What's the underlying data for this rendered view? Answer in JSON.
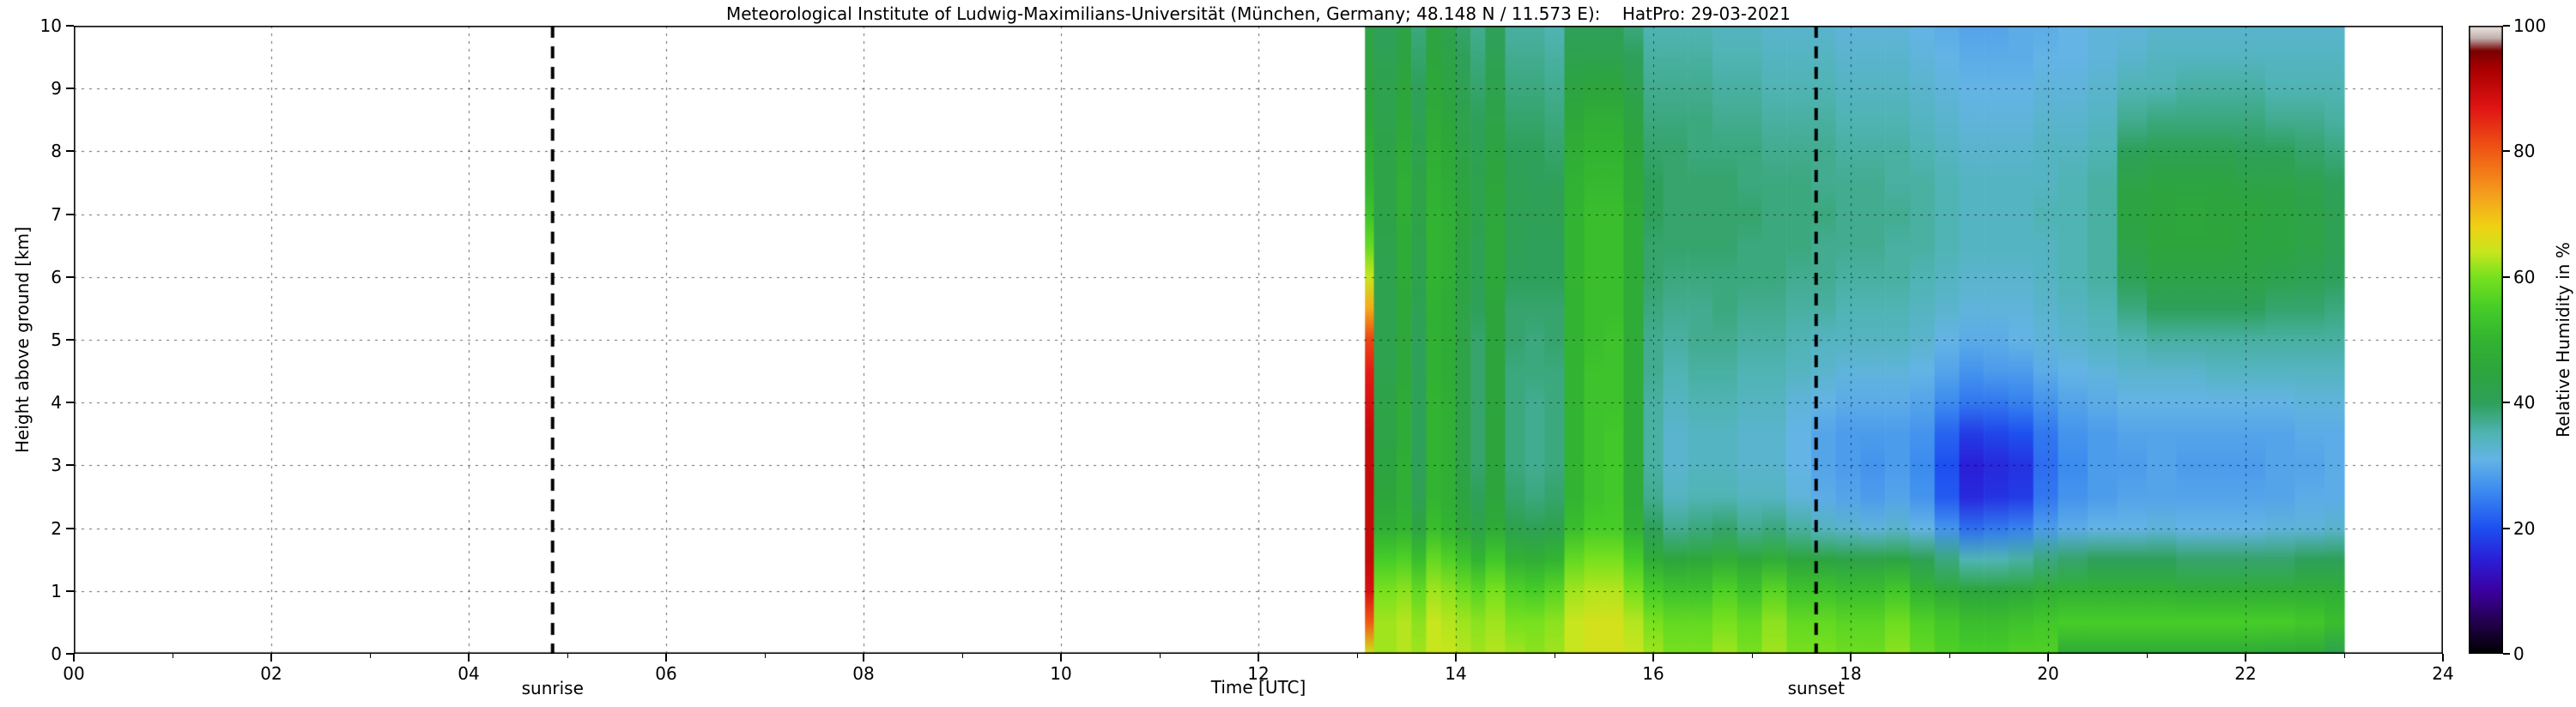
{
  "chart_data": {
    "type": "heatmap",
    "title": "Meteorological Institute of Ludwig-Maximilians-Universität (München, Germany; 48.148 N / 11.573 E):    HatPro: 29-03-2021",
    "xlabel": "Time [UTC]",
    "ylabel": "Height above ground [km]",
    "colorbar_label": "Relative Humidity in %",
    "xlim": [
      0,
      24
    ],
    "ylim": [
      0,
      10
    ],
    "grid": true,
    "x_tick_values": [
      0,
      2,
      4,
      6,
      8,
      10,
      12,
      14,
      16,
      18,
      20,
      22,
      24
    ],
    "x_tick_labels": [
      "00",
      "02",
      "04",
      "06",
      "08",
      "10",
      "12",
      "14",
      "16",
      "18",
      "20",
      "22",
      "24"
    ],
    "y_tick_values": [
      0,
      1,
      2,
      3,
      4,
      5,
      6,
      7,
      8,
      9,
      10
    ],
    "y_tick_labels": [
      "0",
      "1",
      "2",
      "3",
      "4",
      "5",
      "6",
      "7",
      "8",
      "9",
      "10"
    ],
    "colorbar_tick_values": [
      0,
      20,
      40,
      60,
      80,
      100
    ],
    "colorbar_tick_labels": [
      "0",
      "20",
      "40",
      "60",
      "80",
      "100"
    ],
    "annotations": [
      {
        "label": "sunrise",
        "x": 4.85,
        "line_style": "dashed",
        "color": "#000000"
      },
      {
        "label": "sunset",
        "x": 17.65,
        "line_style": "dashed",
        "color": "#000000"
      }
    ],
    "no_data_color": "#ffffff",
    "data_time_range": [
      13.08,
      23.0
    ],
    "heights_km": [
      0,
      0.5,
      1,
      1.5,
      2,
      2.5,
      3,
      3.5,
      4,
      4.5,
      5,
      5.5,
      6,
      6.5,
      7,
      7.5,
      8,
      8.5,
      9,
      9.5,
      10
    ],
    "column_times": [
      13.08,
      13.17,
      13.4,
      13.55,
      13.7,
      13.85,
      14.0,
      14.15,
      14.3,
      14.5,
      14.7,
      14.9,
      15.1,
      15.3,
      15.5,
      15.7,
      15.9,
      16.1,
      16.35,
      16.6,
      16.85,
      17.1,
      17.35,
      17.6,
      17.85,
      18.1,
      18.35,
      18.6,
      18.85,
      19.1,
      19.35,
      19.6,
      19.85,
      20.1,
      20.4,
      20.7,
      21.0,
      21.3,
      21.6,
      21.9,
      22.2,
      22.5,
      22.8
    ],
    "humidity_percent_columns": [
      [
        65,
        80,
        88,
        90,
        90,
        90,
        90,
        90,
        88,
        86,
        82,
        72,
        64,
        58,
        53,
        50,
        48,
        46,
        45,
        44,
        43
      ],
      [
        62,
        62,
        60,
        55,
        48,
        45,
        44,
        43,
        43,
        42,
        42,
        42,
        42,
        42,
        43,
        43,
        43,
        42,
        42,
        41,
        40
      ],
      [
        63,
        63,
        61,
        56,
        50,
        48,
        48,
        47,
        47,
        46,
        46,
        46,
        47,
        47,
        48,
        48,
        47,
        46,
        45,
        44,
        43
      ],
      [
        62,
        61,
        58,
        52,
        44,
        41,
        40,
        40,
        40,
        40,
        40,
        41,
        42,
        42,
        43,
        43,
        42,
        41,
        40,
        39,
        38
      ],
      [
        64,
        64,
        62,
        58,
        52,
        50,
        50,
        50,
        50,
        49,
        49,
        49,
        50,
        50,
        50,
        49,
        48,
        47,
        46,
        45,
        44
      ],
      [
        64,
        63,
        61,
        56,
        50,
        48,
        48,
        48,
        48,
        47,
        47,
        47,
        48,
        48,
        48,
        47,
        46,
        45,
        44,
        43,
        42
      ],
      [
        63,
        62,
        59,
        53,
        46,
        44,
        43,
        43,
        43,
        43,
        43,
        43,
        44,
        44,
        45,
        44,
        43,
        42,
        41,
        40,
        39
      ],
      [
        62,
        61,
        57,
        50,
        43,
        40,
        39,
        39,
        39,
        39,
        39,
        40,
        41,
        41,
        42,
        42,
        41,
        40,
        39,
        38,
        37
      ],
      [
        63,
        62,
        60,
        54,
        47,
        45,
        45,
        45,
        45,
        45,
        45,
        45,
        46,
        46,
        46,
        45,
        44,
        43,
        42,
        41,
        40
      ],
      [
        62,
        60,
        56,
        49,
        42,
        39,
        38,
        38,
        38,
        38,
        39,
        39,
        40,
        41,
        41,
        41,
        40,
        39,
        38,
        37,
        36
      ],
      [
        61,
        60,
        55,
        48,
        41,
        38,
        37,
        37,
        37,
        38,
        38,
        39,
        40,
        40,
        41,
        40,
        40,
        39,
        38,
        37,
        36
      ],
      [
        62,
        61,
        57,
        50,
        42,
        39,
        38,
        38,
        38,
        38,
        39,
        39,
        40,
        40,
        41,
        40,
        39,
        38,
        37,
        36,
        35
      ],
      [
        64,
        64,
        62,
        58,
        52,
        50,
        50,
        50,
        50,
        50,
        50,
        50,
        50,
        50,
        50,
        49,
        48,
        46,
        44,
        42,
        40
      ],
      [
        65,
        65,
        63,
        60,
        55,
        53,
        53,
        53,
        53,
        53,
        52,
        52,
        52,
        52,
        52,
        51,
        50,
        48,
        45,
        42,
        40
      ],
      [
        65,
        65,
        63,
        60,
        55,
        54,
        54,
        54,
        53,
        53,
        53,
        52,
        52,
        52,
        52,
        51,
        50,
        48,
        45,
        42,
        40
      ],
      [
        64,
        63,
        60,
        55,
        49,
        47,
        47,
        47,
        47,
        47,
        47,
        47,
        47,
        47,
        47,
        46,
        45,
        44,
        42,
        40,
        38
      ],
      [
        62,
        60,
        55,
        47,
        40,
        37,
        36,
        36,
        36,
        37,
        37,
        38,
        39,
        39,
        40,
        40,
        39,
        38,
        37,
        36,
        35
      ],
      [
        60,
        58,
        53,
        45,
        37,
        34,
        33,
        33,
        34,
        35,
        36,
        37,
        38,
        39,
        39,
        39,
        39,
        38,
        37,
        36,
        35
      ],
      [
        60,
        58,
        53,
        46,
        38,
        35,
        34,
        34,
        35,
        36,
        37,
        37,
        38,
        39,
        39,
        39,
        38,
        38,
        37,
        36,
        35
      ],
      [
        62,
        60,
        56,
        48,
        39,
        35,
        34,
        34,
        35,
        36,
        37,
        38,
        38,
        39,
        39,
        39,
        38,
        37,
        36,
        35,
        34
      ],
      [
        60,
        58,
        53,
        46,
        37,
        34,
        33,
        33,
        34,
        35,
        36,
        37,
        38,
        38,
        39,
        38,
        38,
        37,
        36,
        35,
        34
      ],
      [
        62,
        61,
        57,
        48,
        38,
        34,
        33,
        33,
        34,
        35,
        36,
        37,
        38,
        38,
        38,
        38,
        37,
        36,
        35,
        34,
        33
      ],
      [
        60,
        58,
        53,
        45,
        36,
        32,
        31,
        31,
        32,
        34,
        35,
        36,
        37,
        38,
        38,
        38,
        37,
        36,
        35,
        34,
        33
      ],
      [
        60,
        58,
        53,
        44,
        34,
        30,
        29,
        29,
        31,
        33,
        34,
        36,
        37,
        37,
        38,
        37,
        37,
        36,
        35,
        34,
        33
      ],
      [
        59,
        57,
        52,
        43,
        33,
        29,
        28,
        28,
        30,
        32,
        34,
        35,
        36,
        37,
        37,
        37,
        36,
        35,
        34,
        33,
        32
      ],
      [
        59,
        57,
        52,
        43,
        32,
        28,
        27,
        28,
        30,
        32,
        34,
        35,
        36,
        37,
        37,
        37,
        36,
        35,
        34,
        33,
        32
      ],
      [
        61,
        59,
        54,
        44,
        33,
        29,
        28,
        28,
        30,
        32,
        34,
        35,
        36,
        36,
        37,
        36,
        36,
        35,
        34,
        33,
        32
      ],
      [
        58,
        56,
        50,
        41,
        31,
        27,
        26,
        27,
        29,
        31,
        33,
        34,
        35,
        36,
        36,
        36,
        35,
        34,
        33,
        32,
        31
      ],
      [
        56,
        54,
        47,
        38,
        27,
        21,
        20,
        22,
        26,
        29,
        31,
        33,
        34,
        35,
        35,
        35,
        34,
        33,
        32,
        31,
        30
      ],
      [
        55,
        52,
        45,
        35,
        23,
        16,
        15,
        18,
        24,
        27,
        30,
        32,
        33,
        34,
        34,
        34,
        33,
        32,
        31,
        30,
        29
      ],
      [
        55,
        52,
        45,
        35,
        24,
        17,
        16,
        19,
        24,
        28,
        30,
        32,
        33,
        34,
        34,
        34,
        33,
        32,
        31,
        30,
        29
      ],
      [
        56,
        53,
        46,
        36,
        25,
        18,
        17,
        20,
        25,
        28,
        31,
        32,
        33,
        34,
        34,
        34,
        33,
        32,
        31,
        30,
        30
      ],
      [
        56,
        54,
        48,
        38,
        28,
        24,
        23,
        24,
        27,
        30,
        32,
        33,
        34,
        34,
        35,
        34,
        34,
        33,
        32,
        31,
        30
      ],
      [
        47,
        55,
        49,
        39,
        30,
        27,
        26,
        27,
        29,
        31,
        33,
        34,
        35,
        35,
        35,
        35,
        34,
        33,
        32,
        31,
        31
      ],
      [
        47,
        55,
        49,
        40,
        31,
        28,
        28,
        28,
        30,
        32,
        34,
        35,
        36,
        36,
        36,
        36,
        35,
        34,
        33,
        32,
        32
      ],
      [
        47,
        55,
        49,
        40,
        31,
        29,
        28,
        29,
        31,
        33,
        35,
        38,
        41,
        43,
        44,
        43,
        40,
        37,
        35,
        33,
        32
      ],
      [
        47,
        55,
        49,
        40,
        32,
        29,
        29,
        29,
        31,
        33,
        36,
        40,
        43,
        45,
        45,
        44,
        41,
        38,
        35,
        34,
        33
      ],
      [
        47,
        55,
        48,
        39,
        31,
        29,
        28,
        29,
        31,
        33,
        36,
        40,
        43,
        45,
        46,
        44,
        41,
        38,
        36,
        34,
        33
      ],
      [
        47,
        55,
        48,
        39,
        31,
        29,
        28,
        29,
        31,
        34,
        36,
        40,
        43,
        45,
        45,
        44,
        41,
        38,
        36,
        34,
        33
      ],
      [
        47,
        55,
        48,
        39,
        31,
        29,
        28,
        29,
        31,
        34,
        36,
        40,
        43,
        44,
        45,
        43,
        40,
        38,
        36,
        34,
        33
      ],
      [
        46,
        55,
        48,
        39,
        32,
        29,
        29,
        29,
        31,
        34,
        36,
        39,
        42,
        44,
        44,
        43,
        40,
        37,
        35,
        34,
        33
      ],
      [
        46,
        54,
        48,
        40,
        32,
        30,
        29,
        30,
        32,
        34,
        36,
        39,
        41,
        43,
        43,
        42,
        39,
        37,
        35,
        34,
        33
      ],
      [
        42,
        52,
        48,
        40,
        33,
        30,
        30,
        30,
        32,
        34,
        36,
        38,
        40,
        41,
        41,
        40,
        38,
        36,
        35,
        34,
        33
      ]
    ],
    "colormap_stops": [
      {
        "value": 0,
        "color": "#000000"
      },
      {
        "value": 5,
        "color": "#23004d"
      },
      {
        "value": 10,
        "color": "#3c00a0"
      },
      {
        "value": 15,
        "color": "#2a1fd8"
      },
      {
        "value": 20,
        "color": "#1e50f0"
      },
      {
        "value": 26,
        "color": "#3c8cf0"
      },
      {
        "value": 31,
        "color": "#64b4e6"
      },
      {
        "value": 35,
        "color": "#50b4b4"
      },
      {
        "value": 40,
        "color": "#2fa05a"
      },
      {
        "value": 45,
        "color": "#2da53c"
      },
      {
        "value": 50,
        "color": "#32b432"
      },
      {
        "value": 55,
        "color": "#46cd28"
      },
      {
        "value": 60,
        "color": "#78e11e"
      },
      {
        "value": 64,
        "color": "#c8e61e"
      },
      {
        "value": 68,
        "color": "#f0d214"
      },
      {
        "value": 73,
        "color": "#f5a01e"
      },
      {
        "value": 80,
        "color": "#f05a14"
      },
      {
        "value": 87,
        "color": "#e01414"
      },
      {
        "value": 93,
        "color": "#aa0000"
      },
      {
        "value": 96,
        "color": "#7a0000"
      },
      {
        "value": 98,
        "color": "#c0b0ac"
      },
      {
        "value": 100,
        "color": "#efe9e4"
      }
    ],
    "grid_color": "#000000",
    "frame_color": "#000000"
  }
}
